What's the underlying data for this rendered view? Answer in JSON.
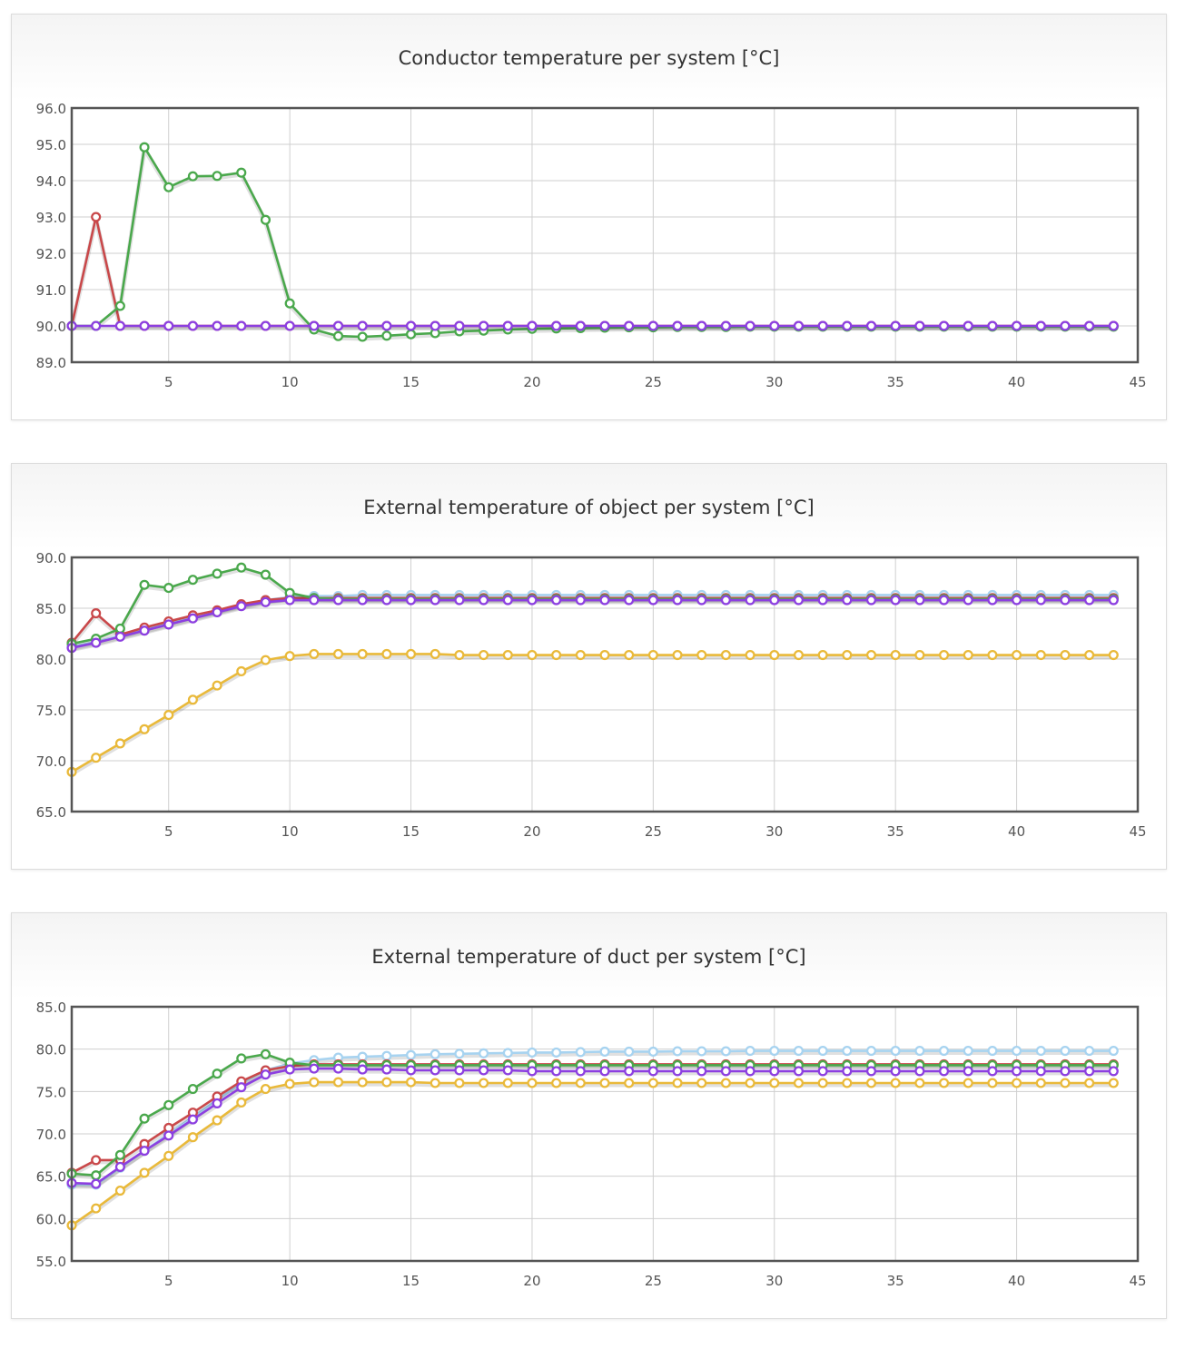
{
  "colors": {
    "red": "#c9484a",
    "green": "#4aa84c",
    "purple": "#8c3fe0",
    "yellow": "#e9b93a",
    "lightblue": "#a7d3f0",
    "grid": "#cfcfcf",
    "frame": "#555555"
  },
  "chart_data": [
    {
      "type": "line",
      "title": "Conductor temperature per system [°C]",
      "xlabel": "",
      "ylabel": "",
      "xlim": [
        1,
        45
      ],
      "ylim": [
        89,
        96
      ],
      "x_ticks": [
        5,
        10,
        15,
        20,
        25,
        30,
        35,
        40,
        45
      ],
      "y_ticks": [
        "89.0",
        "90.0",
        "91.0",
        "92.0",
        "93.0",
        "94.0",
        "95.0",
        "96.0"
      ],
      "grid": true,
      "x": [
        1,
        2,
        3,
        4,
        5,
        6,
        7,
        8,
        9,
        10,
        11,
        12,
        13,
        14,
        15,
        16,
        17,
        18,
        19,
        20,
        21,
        22,
        23,
        24,
        25,
        26,
        27,
        28,
        29,
        30,
        31,
        32,
        33,
        34,
        35,
        36,
        37,
        38,
        39,
        40,
        41,
        42,
        43,
        44
      ],
      "series": [
        {
          "color": "red",
          "values": [
            90.0,
            93.0,
            90.0,
            90.0,
            90.0,
            90.0,
            90.0,
            90.0,
            90.0,
            90.0,
            90.0,
            90.0,
            90.0,
            90.0,
            90.0,
            90.0,
            90.0,
            90.0,
            90.0,
            90.0,
            90.0,
            90.0,
            90.0,
            90.0,
            90.0,
            90.0,
            90.0,
            90.0,
            90.0,
            90.0,
            90.0,
            90.0,
            90.0,
            90.0,
            90.0,
            90.0,
            90.0,
            90.0,
            90.0,
            90.0,
            90.0,
            90.0,
            90.0,
            90.0
          ]
        },
        {
          "color": "green",
          "values": [
            90.0,
            90.0,
            90.55,
            94.92,
            93.82,
            94.12,
            94.13,
            94.22,
            92.92,
            90.62,
            89.9,
            89.72,
            89.7,
            89.73,
            89.77,
            89.8,
            89.85,
            89.87,
            89.9,
            89.92,
            89.93,
            89.94,
            89.95,
            89.96,
            89.96,
            89.97,
            89.97,
            89.97,
            89.98,
            89.98,
            89.98,
            89.98,
            89.98,
            89.98,
            89.98,
            89.98,
            89.98,
            89.98,
            89.98,
            89.98,
            89.98,
            89.98,
            89.98,
            89.98
          ]
        },
        {
          "color": "purple",
          "values": [
            90.0,
            90.0,
            90.0,
            90.0,
            90.0,
            90.0,
            90.0,
            90.0,
            90.0,
            90.0,
            90.0,
            90.0,
            90.0,
            90.0,
            90.0,
            90.0,
            90.0,
            90.0,
            90.0,
            90.0,
            90.0,
            90.0,
            90.0,
            90.0,
            90.0,
            90.0,
            90.0,
            90.0,
            90.0,
            90.0,
            90.0,
            90.0,
            90.0,
            90.0,
            90.0,
            90.0,
            90.0,
            90.0,
            90.0,
            90.0,
            90.0,
            90.0,
            90.0,
            90.0
          ]
        }
      ]
    },
    {
      "type": "line",
      "title": "External temperature of object per system [°C]",
      "xlabel": "",
      "ylabel": "",
      "xlim": [
        1,
        45
      ],
      "ylim": [
        65,
        90
      ],
      "x_ticks": [
        5,
        10,
        15,
        20,
        25,
        30,
        35,
        40,
        45
      ],
      "y_ticks": [
        "65.0",
        "70.0",
        "75.0",
        "80.0",
        "85.0",
        "90.0"
      ],
      "grid": true,
      "x": [
        1,
        2,
        3,
        4,
        5,
        6,
        7,
        8,
        9,
        10,
        11,
        12,
        13,
        14,
        15,
        16,
        17,
        18,
        19,
        20,
        21,
        22,
        23,
        24,
        25,
        26,
        27,
        28,
        29,
        30,
        31,
        32,
        33,
        34,
        35,
        36,
        37,
        38,
        39,
        40,
        41,
        42,
        43,
        44
      ],
      "series": [
        {
          "color": "lightblue",
          "values": [
            81.2,
            81.7,
            82.3,
            82.9,
            83.5,
            84.1,
            84.7,
            85.3,
            85.8,
            86.1,
            86.2,
            86.2,
            86.3,
            86.3,
            86.3,
            86.3,
            86.3,
            86.3,
            86.3,
            86.3,
            86.3,
            86.3,
            86.3,
            86.3,
            86.3,
            86.3,
            86.3,
            86.3,
            86.3,
            86.3,
            86.3,
            86.3,
            86.3,
            86.3,
            86.3,
            86.3,
            86.3,
            86.3,
            86.3,
            86.3,
            86.3,
            86.3,
            86.3,
            86.3
          ]
        },
        {
          "color": "red",
          "values": [
            81.6,
            84.5,
            82.4,
            83.1,
            83.7,
            84.3,
            84.8,
            85.4,
            85.8,
            86.0,
            86.0,
            86.0,
            86.0,
            86.0,
            86.0,
            86.0,
            86.0,
            86.0,
            86.0,
            86.0,
            86.0,
            86.0,
            86.0,
            86.0,
            86.0,
            86.0,
            86.0,
            86.0,
            86.0,
            86.0,
            86.0,
            86.0,
            86.0,
            86.0,
            86.0,
            86.0,
            86.0,
            86.0,
            86.0,
            86.0,
            86.0,
            86.0,
            86.0,
            86.0
          ]
        },
        {
          "color": "green",
          "values": [
            81.5,
            82.0,
            83.0,
            87.3,
            87.0,
            87.8,
            88.4,
            89.0,
            88.3,
            86.5,
            86.0,
            85.9,
            85.9,
            85.9,
            85.9,
            85.9,
            85.9,
            85.9,
            85.9,
            85.9,
            85.9,
            85.9,
            85.9,
            85.9,
            85.9,
            85.9,
            85.9,
            85.9,
            85.9,
            85.9,
            85.9,
            85.9,
            85.9,
            85.9,
            85.9,
            85.9,
            85.9,
            85.9,
            85.9,
            85.9,
            85.9,
            85.9,
            85.9,
            85.9
          ]
        },
        {
          "color": "purple",
          "values": [
            81.1,
            81.6,
            82.2,
            82.8,
            83.4,
            84.0,
            84.6,
            85.2,
            85.6,
            85.8,
            85.8,
            85.8,
            85.8,
            85.8,
            85.8,
            85.8,
            85.8,
            85.8,
            85.8,
            85.8,
            85.8,
            85.8,
            85.8,
            85.8,
            85.8,
            85.8,
            85.8,
            85.8,
            85.8,
            85.8,
            85.8,
            85.8,
            85.8,
            85.8,
            85.8,
            85.8,
            85.8,
            85.8,
            85.8,
            85.8,
            85.8,
            85.8,
            85.8,
            85.8
          ]
        },
        {
          "color": "yellow",
          "values": [
            68.9,
            70.3,
            71.7,
            73.1,
            74.5,
            76.0,
            77.4,
            78.8,
            79.9,
            80.3,
            80.5,
            80.5,
            80.5,
            80.5,
            80.5,
            80.5,
            80.4,
            80.4,
            80.4,
            80.4,
            80.4,
            80.4,
            80.4,
            80.4,
            80.4,
            80.4,
            80.4,
            80.4,
            80.4,
            80.4,
            80.4,
            80.4,
            80.4,
            80.4,
            80.4,
            80.4,
            80.4,
            80.4,
            80.4,
            80.4,
            80.4,
            80.4,
            80.4,
            80.4
          ]
        }
      ]
    },
    {
      "type": "line",
      "title": "External temperature of duct per system [°C]",
      "xlabel": "",
      "ylabel": "",
      "xlim": [
        1,
        45
      ],
      "ylim": [
        55,
        85
      ],
      "x_ticks": [
        5,
        10,
        15,
        20,
        25,
        30,
        35,
        40,
        45
      ],
      "y_ticks": [
        "55.0",
        "60.0",
        "65.0",
        "70.0",
        "75.0",
        "80.0",
        "85.0"
      ],
      "grid": true,
      "x": [
        1,
        2,
        3,
        4,
        5,
        6,
        7,
        8,
        9,
        10,
        11,
        12,
        13,
        14,
        15,
        16,
        17,
        18,
        19,
        20,
        21,
        22,
        23,
        24,
        25,
        26,
        27,
        28,
        29,
        30,
        31,
        32,
        33,
        34,
        35,
        36,
        37,
        38,
        39,
        40,
        41,
        42,
        43,
        44
      ],
      "series": [
        {
          "color": "lightblue",
          "values": [
            64.0,
            64.0,
            66.0,
            68.0,
            70.0,
            72.0,
            74.0,
            76.0,
            77.5,
            78.3,
            78.7,
            79.0,
            79.1,
            79.2,
            79.3,
            79.4,
            79.45,
            79.5,
            79.55,
            79.6,
            79.6,
            79.65,
            79.7,
            79.7,
            79.7,
            79.75,
            79.75,
            79.75,
            79.8,
            79.8,
            79.8,
            79.8,
            79.8,
            79.8,
            79.8,
            79.8,
            79.8,
            79.8,
            79.8,
            79.8,
            79.8,
            79.8,
            79.8,
            79.8
          ]
        },
        {
          "color": "red",
          "values": [
            65.4,
            66.9,
            66.9,
            68.8,
            70.7,
            72.5,
            74.4,
            76.2,
            77.5,
            78.0,
            78.2,
            78.2,
            78.2,
            78.2,
            78.2,
            78.2,
            78.2,
            78.2,
            78.2,
            78.2,
            78.2,
            78.2,
            78.2,
            78.2,
            78.2,
            78.2,
            78.2,
            78.2,
            78.2,
            78.2,
            78.2,
            78.2,
            78.2,
            78.2,
            78.2,
            78.2,
            78.2,
            78.2,
            78.2,
            78.2,
            78.2,
            78.2,
            78.2,
            78.2
          ]
        },
        {
          "color": "green",
          "values": [
            65.3,
            65.1,
            67.5,
            71.8,
            73.4,
            75.3,
            77.1,
            78.9,
            79.4,
            78.4,
            78.1,
            78.1,
            78.1,
            78.1,
            78.1,
            78.1,
            78.1,
            78.1,
            78.1,
            78.1,
            78.1,
            78.1,
            78.1,
            78.1,
            78.1,
            78.1,
            78.1,
            78.1,
            78.1,
            78.1,
            78.1,
            78.1,
            78.1,
            78.1,
            78.1,
            78.1,
            78.1,
            78.1,
            78.1,
            78.1,
            78.1,
            78.1,
            78.1,
            78.1
          ]
        },
        {
          "color": "purple",
          "values": [
            64.2,
            64.1,
            66.1,
            68.0,
            69.8,
            71.7,
            73.6,
            75.5,
            77.0,
            77.6,
            77.7,
            77.7,
            77.6,
            77.6,
            77.5,
            77.5,
            77.5,
            77.5,
            77.5,
            77.4,
            77.4,
            77.4,
            77.4,
            77.4,
            77.4,
            77.4,
            77.4,
            77.4,
            77.4,
            77.4,
            77.4,
            77.4,
            77.4,
            77.4,
            77.4,
            77.4,
            77.4,
            77.4,
            77.4,
            77.4,
            77.4,
            77.4,
            77.4,
            77.4
          ]
        },
        {
          "color": "yellow",
          "values": [
            59.2,
            61.2,
            63.3,
            65.4,
            67.4,
            69.6,
            71.6,
            73.7,
            75.3,
            75.9,
            76.1,
            76.1,
            76.1,
            76.1,
            76.1,
            76.0,
            76.0,
            76.0,
            76.0,
            76.0,
            76.0,
            76.0,
            76.0,
            76.0,
            76.0,
            76.0,
            76.0,
            76.0,
            76.0,
            76.0,
            76.0,
            76.0,
            76.0,
            76.0,
            76.0,
            76.0,
            76.0,
            76.0,
            76.0,
            76.0,
            76.0,
            76.0,
            76.0,
            76.0
          ]
        }
      ]
    }
  ]
}
